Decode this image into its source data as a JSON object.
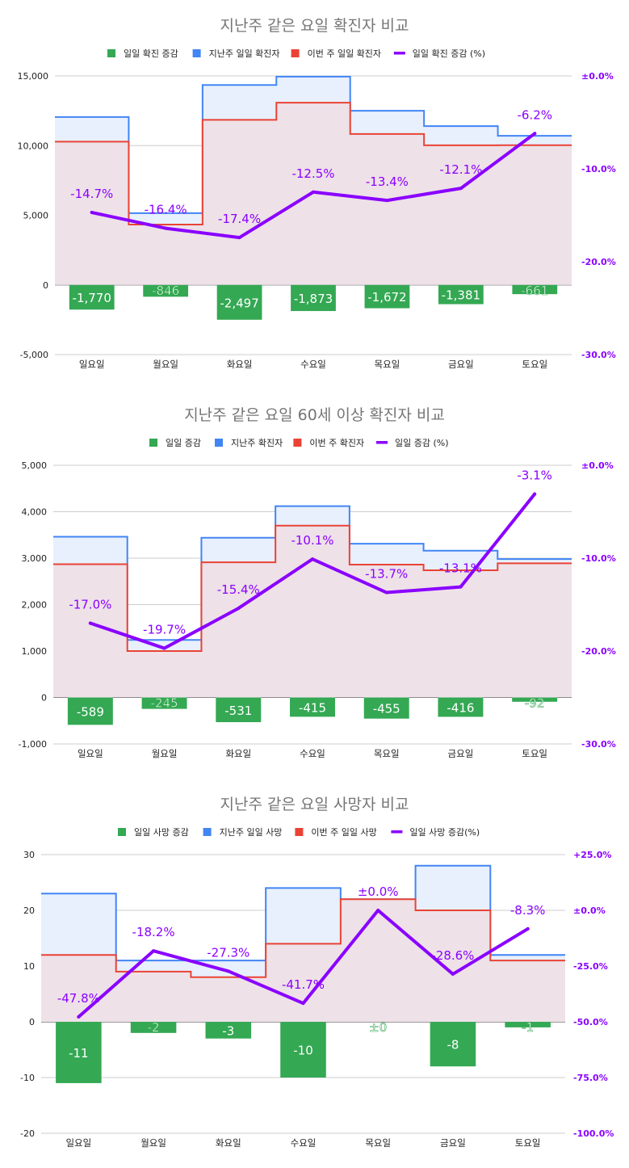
{
  "chart_data": [
    {
      "type": "bar+step+line",
      "title": "지난주 같은 요일 확진자 비교",
      "legend": [
        "일일 확진 증감",
        "지난주 일일 확진자",
        "이번 주 일일 확진자",
        "일일 확진 증감 (%)"
      ],
      "categories": [
        "일요일",
        "월요일",
        "화요일",
        "수요일",
        "목요일",
        "금요일",
        "토요일"
      ],
      "ylim": [
        -5000,
        15000
      ],
      "yticks": [
        -5000,
        0,
        5000,
        10000,
        15000
      ],
      "ytick_labels": [
        "-5,000",
        "0",
        "5,000",
        "10,000",
        "15,000"
      ],
      "y2lim": [
        -30,
        0
      ],
      "y2ticks": [
        -30,
        -20,
        -10,
        0
      ],
      "y2tick_labels": [
        "-30.0%",
        "-20.0%",
        "-10.0%",
        "±0.0%"
      ],
      "series": [
        {
          "name": "일일 확진 증감",
          "kind": "bar",
          "color": "#34a853",
          "values": [
            -1770,
            -846,
            -2497,
            -1873,
            -1672,
            -1381,
            -661
          ],
          "labels": [
            "-1,770",
            "-846",
            "-2,497",
            "-1,873",
            "-1,672",
            "-1,381",
            "-661"
          ]
        },
        {
          "name": "지난주 일일 확진자",
          "kind": "step",
          "color": "#4285f4",
          "fill": "#e8f0fe",
          "values": [
            12050,
            5150,
            14350,
            14950,
            12500,
            11400,
            10700
          ]
        },
        {
          "name": "이번 주 일일 확진자",
          "kind": "step",
          "color": "#ea4335",
          "fill": "#eee1e8",
          "values": [
            10280,
            4330,
            11850,
            13080,
            10830,
            10020,
            10030
          ]
        },
        {
          "name": "일일 확진 증감 (%)",
          "kind": "line",
          "axis": "right",
          "color": "#8a00ff",
          "values": [
            -14.7,
            -16.4,
            -17.4,
            -12.5,
            -13.4,
            -12.1,
            -6.2
          ],
          "labels": [
            "-14.7%",
            "-16.4%",
            "-17.4%",
            "-12.5%",
            "-13.4%",
            "-12.1%",
            "-6.2%"
          ]
        }
      ]
    },
    {
      "type": "bar+step+line",
      "title": "지난주 같은 요일 60세 이상 확진자 비교",
      "legend": [
        "일일 증감",
        "지난주 확진자",
        "이번 주 확진자",
        "일일 증감 (%)"
      ],
      "categories": [
        "일요일",
        "월요일",
        "화요일",
        "수요일",
        "목요일",
        "금요일",
        "토요일"
      ],
      "ylim": [
        -1000,
        5000
      ],
      "yticks": [
        -1000,
        0,
        1000,
        2000,
        3000,
        4000,
        5000
      ],
      "ytick_labels": [
        "-1,000",
        "0",
        "1,000",
        "2,000",
        "3,000",
        "4,000",
        "5,000"
      ],
      "y2lim": [
        -30,
        0
      ],
      "y2ticks": [
        -30,
        -20,
        -10,
        0
      ],
      "y2tick_labels": [
        "-30.0%",
        "-20.0%",
        "-10.0%",
        "±0.0%"
      ],
      "series": [
        {
          "name": "일일 증감",
          "kind": "bar",
          "color": "#34a853",
          "values": [
            -589,
            -245,
            -531,
            -415,
            -455,
            -416,
            -92
          ],
          "labels": [
            "-589",
            "-245",
            "-531",
            "-415",
            "-455",
            "-416",
            "-92"
          ]
        },
        {
          "name": "지난주 확진자",
          "kind": "step",
          "color": "#4285f4",
          "fill": "#e8f0fe",
          "values": [
            3460,
            1240,
            3440,
            4120,
            3310,
            3160,
            2980
          ]
        },
        {
          "name": "이번 주 확진자",
          "kind": "step",
          "color": "#ea4335",
          "fill": "#eee1e8",
          "values": [
            2870,
            1000,
            2910,
            3700,
            2860,
            2740,
            2890
          ]
        },
        {
          "name": "일일 증감 (%)",
          "kind": "line",
          "axis": "right",
          "color": "#8a00ff",
          "values": [
            -17.0,
            -19.7,
            -15.4,
            -10.1,
            -13.7,
            -13.1,
            -3.1
          ],
          "labels": [
            "-17.0%",
            "-19.7%",
            "-15.4%",
            "-10.1%",
            "-13.7%",
            "-13.1%",
            "-3.1%"
          ]
        }
      ]
    },
    {
      "type": "bar+step+line",
      "title": "지난주 같은 요일 사망자 비교",
      "legend": [
        "일일 사망 증감",
        "지난주 일일 사망",
        "이번 주 일일 사망",
        "일일 사망 증감(%)"
      ],
      "categories": [
        "일요일",
        "월요일",
        "화요일",
        "수요일",
        "목요일",
        "금요일",
        "토요일"
      ],
      "ylim": [
        -20,
        30
      ],
      "yticks": [
        -20,
        -10,
        0,
        10,
        20,
        30
      ],
      "ytick_labels": [
        "-20",
        "-10",
        "0",
        "10",
        "20",
        "30"
      ],
      "y2lim": [
        -100,
        25
      ],
      "y2ticks": [
        -100,
        -75,
        -50,
        -25,
        0,
        25
      ],
      "y2tick_labels": [
        "-100.0%",
        "-75.0%",
        "-50.0%",
        "-25.0%",
        "±0.0%",
        "+25.0%"
      ],
      "series": [
        {
          "name": "일일 사망 증감",
          "kind": "bar",
          "color": "#34a853",
          "values": [
            -11,
            -2,
            -3,
            -10,
            0,
            -8,
            -1
          ],
          "labels": [
            "-11",
            "-2",
            "-3",
            "-10",
            "±0",
            "-8",
            "-1"
          ]
        },
        {
          "name": "지난주 일일 사망",
          "kind": "step",
          "color": "#4285f4",
          "fill": "#e8f0fe",
          "values": [
            23,
            11,
            11,
            24,
            22,
            28,
            12
          ]
        },
        {
          "name": "이번 주 일일 사망",
          "kind": "step",
          "color": "#ea4335",
          "fill": "#eee1e8",
          "values": [
            12,
            9,
            8,
            14,
            22,
            20,
            11
          ]
        },
        {
          "name": "일일 사망 증감(%)",
          "kind": "line",
          "axis": "right",
          "color": "#8a00ff",
          "values": [
            -47.8,
            -18.2,
            -27.3,
            -41.7,
            0.0,
            -28.6,
            -8.3
          ],
          "labels": [
            "-47.8%",
            "-18.2%",
            "-27.3%",
            "-41.7%",
            "±0.0%",
            "-28.6%",
            "-8.3%"
          ]
        }
      ]
    }
  ]
}
